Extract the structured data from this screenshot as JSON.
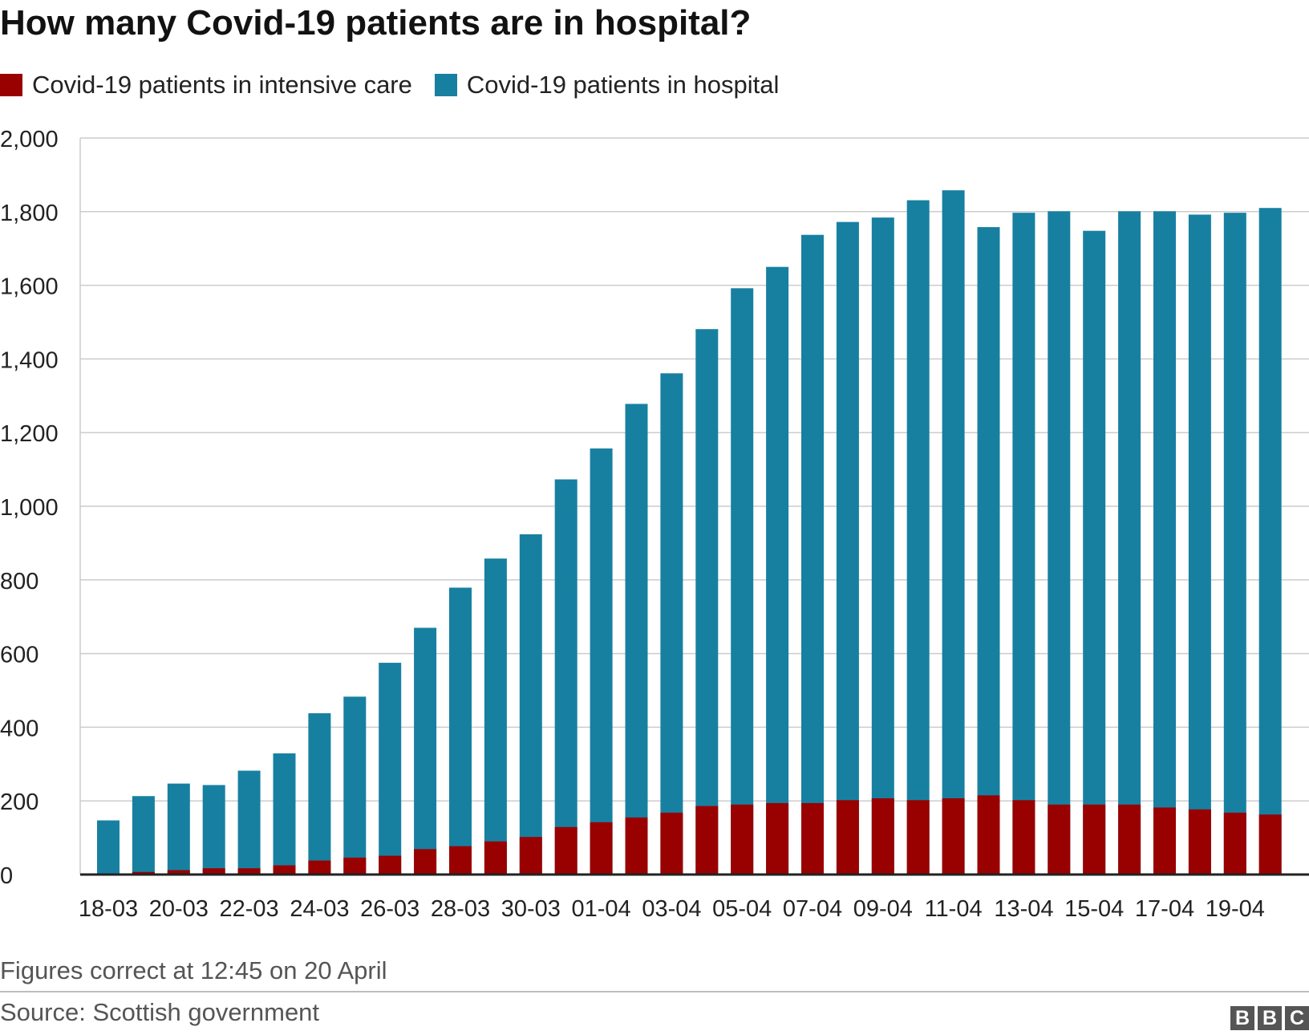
{
  "colors": {
    "icu": "#990000",
    "hospital": "#1780a1",
    "grid": "#cccccc",
    "axis": "#222222"
  },
  "chart_data": {
    "type": "bar",
    "stacked": true,
    "title": "How many Covid-19 patients are in hospital?",
    "legend": [
      {
        "name": "Covid-19 patients in intensive care",
        "color": "#990000"
      },
      {
        "name": "Covid-19 patients in hospital",
        "color": "#1780a1"
      }
    ],
    "legend_position": "top-left",
    "categories": [
      "18-03",
      "19-03",
      "20-03",
      "21-03",
      "22-03",
      "23-03",
      "24-03",
      "25-03",
      "26-03",
      "27-03",
      "28-03",
      "29-03",
      "30-03",
      "31-03",
      "01-04",
      "02-04",
      "03-04",
      "04-04",
      "05-04",
      "06-04",
      "07-04",
      "08-04",
      "09-04",
      "10-04",
      "11-04",
      "12-04",
      "13-04",
      "14-04",
      "15-04",
      "16-04",
      "17-04",
      "18-04",
      "19-04",
      "20-04"
    ],
    "tick_labels": [
      "18-03",
      "20-03",
      "22-03",
      "24-03",
      "26-03",
      "28-03",
      "30-03",
      "01-04",
      "03-04",
      "05-04",
      "07-04",
      "09-04",
      "11-04",
      "13-04",
      "15-04",
      "17-04",
      "19-04"
    ],
    "series": [
      {
        "name": "Covid-19 patients in intensive care",
        "values": [
          0,
          7,
          12,
          17,
          17,
          25,
          38,
          46,
          51,
          69,
          77,
          90,
          102,
          129,
          142,
          155,
          168,
          186,
          190,
          194,
          194,
          202,
          207,
          202,
          207,
          215,
          202,
          190,
          190,
          190,
          182,
          177,
          168,
          163
        ]
      },
      {
        "name": "Covid-19 patients in hospital",
        "values": [
          147,
          213,
          247,
          243,
          282,
          329,
          438,
          483,
          575,
          670,
          779,
          858,
          924,
          1073,
          1157,
          1278,
          1361,
          1481,
          1592,
          1650,
          1737,
          1772,
          1784,
          1831,
          1858,
          1758,
          1797,
          1801,
          1748,
          1801,
          1801,
          1792,
          1797,
          1810
        ]
      }
    ],
    "ylim": [
      0,
      2000
    ],
    "yticks": [
      0,
      200,
      400,
      600,
      800,
      1000,
      1200,
      1400,
      1600,
      1800,
      2000
    ],
    "ytick_labels": [
      "0",
      "200",
      "400",
      "600",
      "800",
      "1,000",
      "1,200",
      "1,400",
      "1,600",
      "1,800",
      "2,000"
    ],
    "grid": true,
    "xlabel": "",
    "ylabel": ""
  },
  "note": "Figures correct at 12:45 on 20 April",
  "source": "Source: Scottish government",
  "logo": [
    "B",
    "B",
    "C"
  ]
}
